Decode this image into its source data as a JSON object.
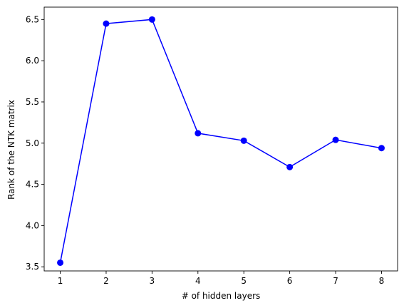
{
  "chart_data": {
    "type": "line",
    "title": "",
    "xlabel": "# of hidden layers",
    "ylabel": "Rank of the NTK matrix",
    "xlim": [
      0.65,
      8.35
    ],
    "ylim": [
      3.45,
      6.65
    ],
    "grid": false,
    "x_ticks": [
      "1",
      "2",
      "3",
      "4",
      "5",
      "6",
      "7",
      "8"
    ],
    "y_ticks": [
      "3.5",
      "4.0",
      "4.5",
      "5.0",
      "5.5",
      "6.0",
      "6.5"
    ],
    "series": [
      {
        "color": "#0000ff",
        "marker": "circle",
        "x": [
          1,
          2,
          3,
          4,
          5,
          6,
          7,
          8
        ],
        "y": [
          3.55,
          6.45,
          6.5,
          5.12,
          5.03,
          4.71,
          5.04,
          4.94
        ]
      }
    ]
  }
}
